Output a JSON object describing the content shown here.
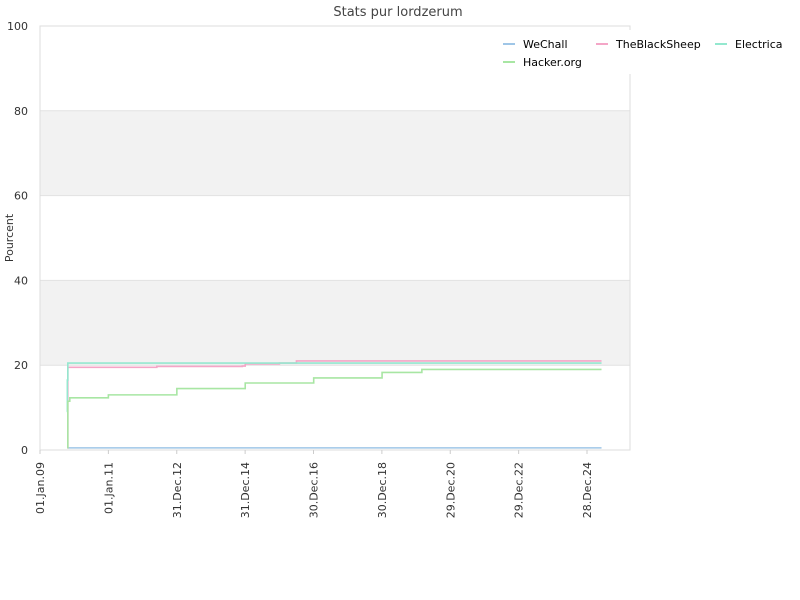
{
  "chart_data": {
    "type": "line",
    "title": "Stats pur lordzerum",
    "xlabel": "",
    "ylabel": "Pourcent",
    "ylim": [
      0,
      100
    ],
    "yticks": [
      0,
      20,
      40,
      60,
      80,
      100
    ],
    "xlim": [
      "2009-01-01",
      "2026-04-01"
    ],
    "xticks": [
      {
        "label": "01.Jan.09",
        "date": "2009-01-01"
      },
      {
        "label": "01.Jan.11",
        "date": "2011-01-01"
      },
      {
        "label": "31.Dec.12",
        "date": "2012-12-31"
      },
      {
        "label": "31.Dec.14",
        "date": "2014-12-31"
      },
      {
        "label": "30.Dec.16",
        "date": "2016-12-30"
      },
      {
        "label": "30.Dec.18",
        "date": "2018-12-30"
      },
      {
        "label": "29.Dec.20",
        "date": "2020-12-29"
      },
      {
        "label": "29.Dec.22",
        "date": "2022-12-29"
      },
      {
        "label": "28.Dec.24",
        "date": "2024-12-28"
      }
    ],
    "grid": true,
    "alternating_bands": true,
    "legend_position": "top-right",
    "series": [
      {
        "name": "WeChall",
        "color": "#9fc6e7",
        "points": [
          [
            "2009-10-20",
            0.5
          ],
          [
            "2025-06-01",
            0.5
          ]
        ]
      },
      {
        "name": "TheBlackSheep",
        "color": "#f4a6c7",
        "points": [
          [
            "2009-10-20",
            0.5
          ],
          [
            "2009-10-25",
            19.5
          ],
          [
            "2011-12-01",
            19.5
          ],
          [
            "2012-06-01",
            19.7
          ],
          [
            "2014-12-01",
            19.8
          ],
          [
            "2015-01-01",
            20.3
          ],
          [
            "2016-01-01",
            20.5
          ],
          [
            "2016-07-01",
            21.0
          ],
          [
            "2025-06-01",
            21.0
          ]
        ]
      },
      {
        "name": "Electrica",
        "color": "#94e8cf",
        "points": [
          [
            "2009-10-15",
            9.0
          ],
          [
            "2009-10-20",
            16.5
          ],
          [
            "2009-10-25",
            20.5
          ],
          [
            "2025-06-01",
            20.5
          ]
        ]
      },
      {
        "name": "Hacker.org",
        "color": "#a8e6a3",
        "points": [
          [
            "2009-10-20",
            0.5
          ],
          [
            "2009-10-25",
            11.5
          ],
          [
            "2009-11-15",
            12.3
          ],
          [
            "2011-01-01",
            13.0
          ],
          [
            "2013-01-01",
            14.5
          ],
          [
            "2015-01-01",
            15.8
          ],
          [
            "2017-01-01",
            17.0
          ],
          [
            "2019-01-01",
            18.3
          ],
          [
            "2020-03-01",
            19.0
          ],
          [
            "2025-06-01",
            19.0
          ]
        ]
      }
    ]
  }
}
